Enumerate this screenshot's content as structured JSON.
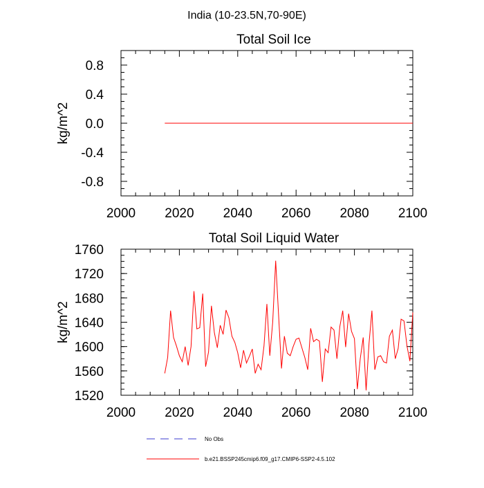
{
  "figure_title": "India (10-23.5N,70-90E)",
  "colors": {
    "axis": "#000000",
    "model_line": "#ff0000",
    "obs_line": "#3b3bcf"
  },
  "chart_data": [
    {
      "type": "line",
      "title": "Total Soil Ice",
      "ylabel": "kg/m^2",
      "xlabel": "",
      "xlim": [
        2000,
        2100
      ],
      "ylim": [
        -1.0,
        1.0
      ],
      "xticks": [
        2000,
        2020,
        2040,
        2060,
        2080,
        2100
      ],
      "xtick_labels": [
        "2000",
        "2020",
        "2040",
        "2060",
        "2080",
        "2100"
      ],
      "yticks": [
        -0.8,
        -0.4,
        0.0,
        0.4,
        0.8
      ],
      "ytick_labels": [
        "-0.8",
        "-0.4",
        "0.0",
        "0.4",
        "0.8"
      ],
      "grid": false,
      "series": [
        {
          "name": "b.e21.BSSP245cmip6.f09_g17.CMIP6-SSP2-4.5.102",
          "color": "#ff0000",
          "x": [
            2015,
            2100
          ],
          "values": [
            0.0,
            0.0
          ]
        }
      ]
    },
    {
      "type": "line",
      "title": "Total Soil Liquid Water",
      "ylabel": "kg/m^2",
      "xlabel": "",
      "xlim": [
        2000,
        2100
      ],
      "ylim": [
        1520,
        1760
      ],
      "xticks": [
        2000,
        2020,
        2040,
        2060,
        2080,
        2100
      ],
      "xtick_labels": [
        "2000",
        "2020",
        "2040",
        "2060",
        "2080",
        "2100"
      ],
      "yticks": [
        1520,
        1560,
        1600,
        1640,
        1680,
        1720,
        1760
      ],
      "ytick_labels": [
        "1520",
        "1560",
        "1600",
        "1640",
        "1680",
        "1720",
        "1760"
      ],
      "grid": false,
      "series": [
        {
          "name": "b.e21.BSSP245cmip6.f09_g17.CMIP6-SSP2-4.5.102",
          "color": "#ff0000",
          "x": [
            2015,
            2016,
            2017,
            2018,
            2019,
            2020,
            2021,
            2022,
            2023,
            2024,
            2025,
            2026,
            2027,
            2028,
            2029,
            2030,
            2031,
            2032,
            2033,
            2034,
            2035,
            2036,
            2037,
            2038,
            2039,
            2040,
            2041,
            2042,
            2043,
            2044,
            2045,
            2046,
            2047,
            2048,
            2049,
            2050,
            2051,
            2052,
            2053,
            2054,
            2055,
            2056,
            2057,
            2058,
            2059,
            2060,
            2061,
            2062,
            2063,
            2064,
            2065,
            2066,
            2067,
            2068,
            2069,
            2070,
            2071,
            2072,
            2073,
            2074,
            2075,
            2076,
            2077,
            2078,
            2079,
            2080,
            2081,
            2082,
            2083,
            2084,
            2085,
            2086,
            2087,
            2088,
            2089,
            2090,
            2091,
            2092,
            2093,
            2094,
            2095,
            2096,
            2097,
            2098,
            2099,
            2100
          ],
          "values": [
            1556,
            1582,
            1659,
            1615,
            1601,
            1585,
            1575,
            1600,
            1569,
            1600,
            1691,
            1629,
            1631,
            1687,
            1567,
            1591,
            1667,
            1623,
            1598,
            1635,
            1620,
            1660,
            1647,
            1617,
            1607,
            1590,
            1565,
            1594,
            1573,
            1584,
            1596,
            1556,
            1571,
            1562,
            1601,
            1670,
            1585,
            1640,
            1741,
            1652,
            1564,
            1617,
            1589,
            1585,
            1600,
            1612,
            1614,
            1598,
            1582,
            1562,
            1630,
            1608,
            1612,
            1609,
            1542,
            1596,
            1590,
            1632,
            1627,
            1580,
            1633,
            1659,
            1599,
            1654,
            1625,
            1613,
            1530,
            1580,
            1615,
            1528,
            1605,
            1659,
            1562,
            1583,
            1585,
            1575,
            1573,
            1617,
            1627,
            1580,
            1597,
            1645,
            1642,
            1601,
            1576,
            1656
          ]
        }
      ]
    }
  ],
  "legend": {
    "placement": "bottom-center",
    "entries": [
      {
        "label": "No Obs",
        "color": "#3b3bcf",
        "style": "dashed"
      },
      {
        "label": "b.e21.BSSP245cmip6.f09_g17.CMIP6-SSP2-4.5.102",
        "color": "#ff0000",
        "style": "solid"
      }
    ]
  }
}
